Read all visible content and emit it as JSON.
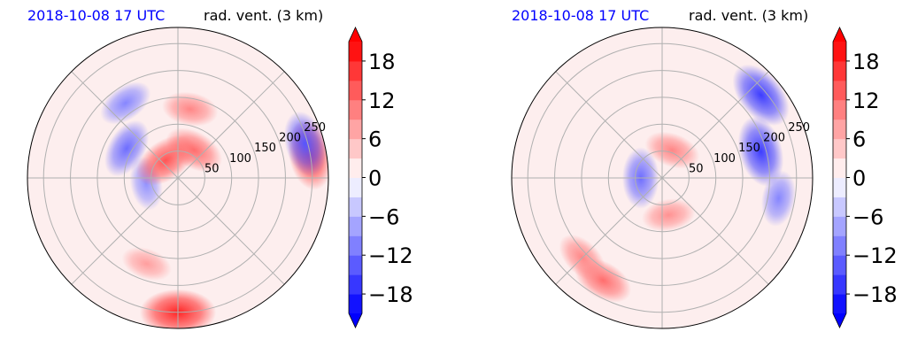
{
  "colors": {
    "title_left": "#0000ff",
    "title_right": "#000000",
    "grid": "#b0b0b0",
    "neg": "#0000ff",
    "pos": "#ff0000"
  },
  "chart_data": [
    {
      "type": "heatmap",
      "projection": "polar",
      "title_left": "2018-10-08 17 UTC",
      "title_right": "rad. vent. (3 km)",
      "radial_ticks": [
        50,
        100,
        150,
        200,
        250
      ],
      "colorbar": {
        "ticks": [
          18,
          12,
          6,
          0,
          -6,
          -12,
          -18
        ],
        "tick_labels": [
          "18",
          "12",
          "6",
          "0",
          "−6",
          "−12",
          "−18"
        ],
        "range": [
          -21,
          21
        ],
        "extend": "both"
      },
      "features": [
        {
          "sign": "neg",
          "value": -10,
          "r": 170,
          "theta": 125
        },
        {
          "sign": "neg",
          "value": -12,
          "r": 110,
          "theta": 150
        },
        {
          "sign": "neg",
          "value": -9,
          "r": 60,
          "theta": 190
        },
        {
          "sign": "pos",
          "value": 14,
          "r": 40,
          "theta": 125
        },
        {
          "sign": "pos",
          "value": 12,
          "r": 60,
          "theta": 60
        },
        {
          "sign": "pos",
          "value": 10,
          "r": 130,
          "theta": 80
        },
        {
          "sign": "pos",
          "value": 16,
          "r": 250,
          "theta": 10
        },
        {
          "sign": "neg",
          "value": -14,
          "r": 245,
          "theta": 15
        },
        {
          "sign": "pos",
          "value": 18,
          "r": 250,
          "theta": 270
        },
        {
          "sign": "pos",
          "value": 8,
          "r": 170,
          "theta": 250
        }
      ]
    },
    {
      "type": "heatmap",
      "projection": "polar",
      "title_left": "2018-10-08 17 UTC",
      "title_right": "rad. vent. (3 km)",
      "radial_ticks": [
        50,
        100,
        150,
        200,
        250
      ],
      "colorbar": {
        "ticks": [
          18,
          12,
          6,
          0,
          -6,
          -12,
          -18
        ],
        "tick_labels": [
          "18",
          "12",
          "6",
          "0",
          "−6",
          "−12",
          "−18"
        ],
        "range": [
          -21,
          21
        ],
        "extend": "both"
      },
      "features": [
        {
          "sign": "pos",
          "value": 12,
          "r": 220,
          "theta": 240
        },
        {
          "sign": "pos",
          "value": 10,
          "r": 210,
          "theta": 225
        },
        {
          "sign": "neg",
          "value": -16,
          "r": 240,
          "theta": 40
        },
        {
          "sign": "neg",
          "value": -16,
          "r": 190,
          "theta": 15
        },
        {
          "sign": "neg",
          "value": -12,
          "r": 40,
          "theta": 180
        },
        {
          "sign": "pos",
          "value": 10,
          "r": 55,
          "theta": 70
        },
        {
          "sign": "pos",
          "value": 9,
          "r": 70,
          "theta": 280
        },
        {
          "sign": "neg",
          "value": -10,
          "r": 220,
          "theta": 350
        }
      ]
    }
  ]
}
